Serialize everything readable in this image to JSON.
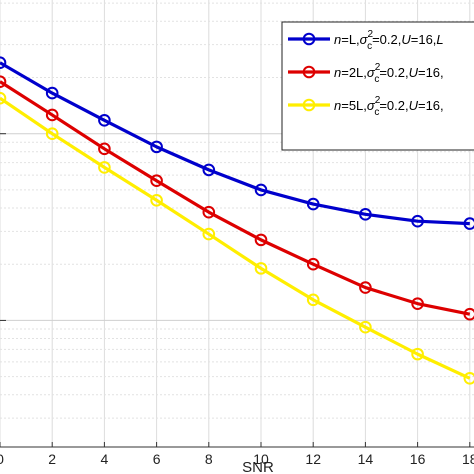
{
  "chart_data": {
    "type": "line",
    "xlabel": "SNR",
    "ylabel": "",
    "title": "",
    "x": [
      0,
      2,
      4,
      6,
      8,
      10,
      12,
      14,
      16,
      18
    ],
    "x_ticks": [
      "0",
      "2",
      "4",
      "6",
      "8",
      "10",
      "12",
      "14",
      "16",
      "18"
    ],
    "xlim": [
      0,
      18
    ],
    "yscale": "log",
    "ylim": [
      0.0021,
      0.52
    ],
    "grid": true,
    "legend_position": "top-right",
    "series": [
      {
        "name_parts": [
          "n",
          "=L,",
          "σ",
          "2",
          "c",
          "=0.2,",
          "U",
          "=16,",
          "L"
        ],
        "color": "#0000cc",
        "values": [
          0.24,
          0.165,
          0.118,
          0.085,
          0.064,
          0.05,
          0.042,
          0.037,
          0.034,
          0.033
        ]
      },
      {
        "name_parts": [
          "n",
          "=2L,",
          "σ",
          "2",
          "c",
          "=0.2,",
          "U",
          "=16,",
          ""
        ],
        "color": "#dd0000",
        "values": [
          0.19,
          0.126,
          0.083,
          0.056,
          0.038,
          0.027,
          0.02,
          0.015,
          0.0123,
          0.0108
        ]
      },
      {
        "name_parts": [
          "n",
          "=5L,",
          "σ",
          "2",
          "c",
          "=0.2,",
          "U",
          "=16,",
          ""
        ],
        "color": "#ffee00",
        "values": [
          0.155,
          0.1,
          0.066,
          0.044,
          0.029,
          0.019,
          0.0129,
          0.0092,
          0.0066,
          0.0049
        ]
      }
    ]
  }
}
